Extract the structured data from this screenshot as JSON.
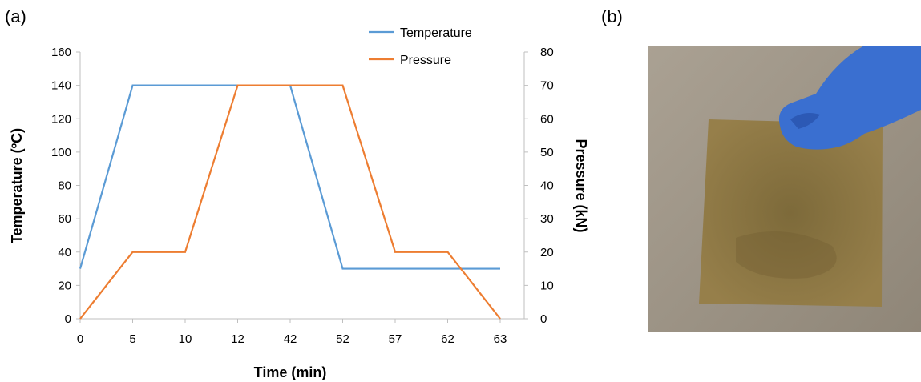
{
  "panels": {
    "a": "(a)",
    "b": "(b)"
  },
  "chart_data": {
    "type": "line",
    "categories": [
      "0",
      "5",
      "10",
      "12",
      "42",
      "52",
      "57",
      "62",
      "63"
    ],
    "series": [
      {
        "name": "Temperature",
        "axis": "left",
        "color": "#5b9bd5",
        "values": [
          30,
          140,
          140,
          140,
          140,
          30,
          30,
          30,
          30
        ]
      },
      {
        "name": "Pressure",
        "axis": "right",
        "color": "#ed7d31",
        "values": [
          0,
          20,
          20,
          70,
          70,
          70,
          20,
          20,
          0
        ]
      }
    ],
    "xlabel": "Time (min)",
    "ylabel": "Temperature (ºC)",
    "y2label": "Pressure (kN)",
    "ylim": [
      0,
      160
    ],
    "y2lim": [
      0,
      80
    ],
    "yticks": [
      "0",
      "20",
      "40",
      "60",
      "80",
      "100",
      "120",
      "140",
      "160"
    ],
    "y2ticks": [
      "0",
      "10",
      "20",
      "30",
      "40",
      "50",
      "60",
      "70",
      "80"
    ],
    "grid": false,
    "legend": "top-right"
  },
  "photo": {
    "background_color": "#a39a8c",
    "sheet_color": "#8a7440",
    "glove_color": "#3a6fd0"
  }
}
